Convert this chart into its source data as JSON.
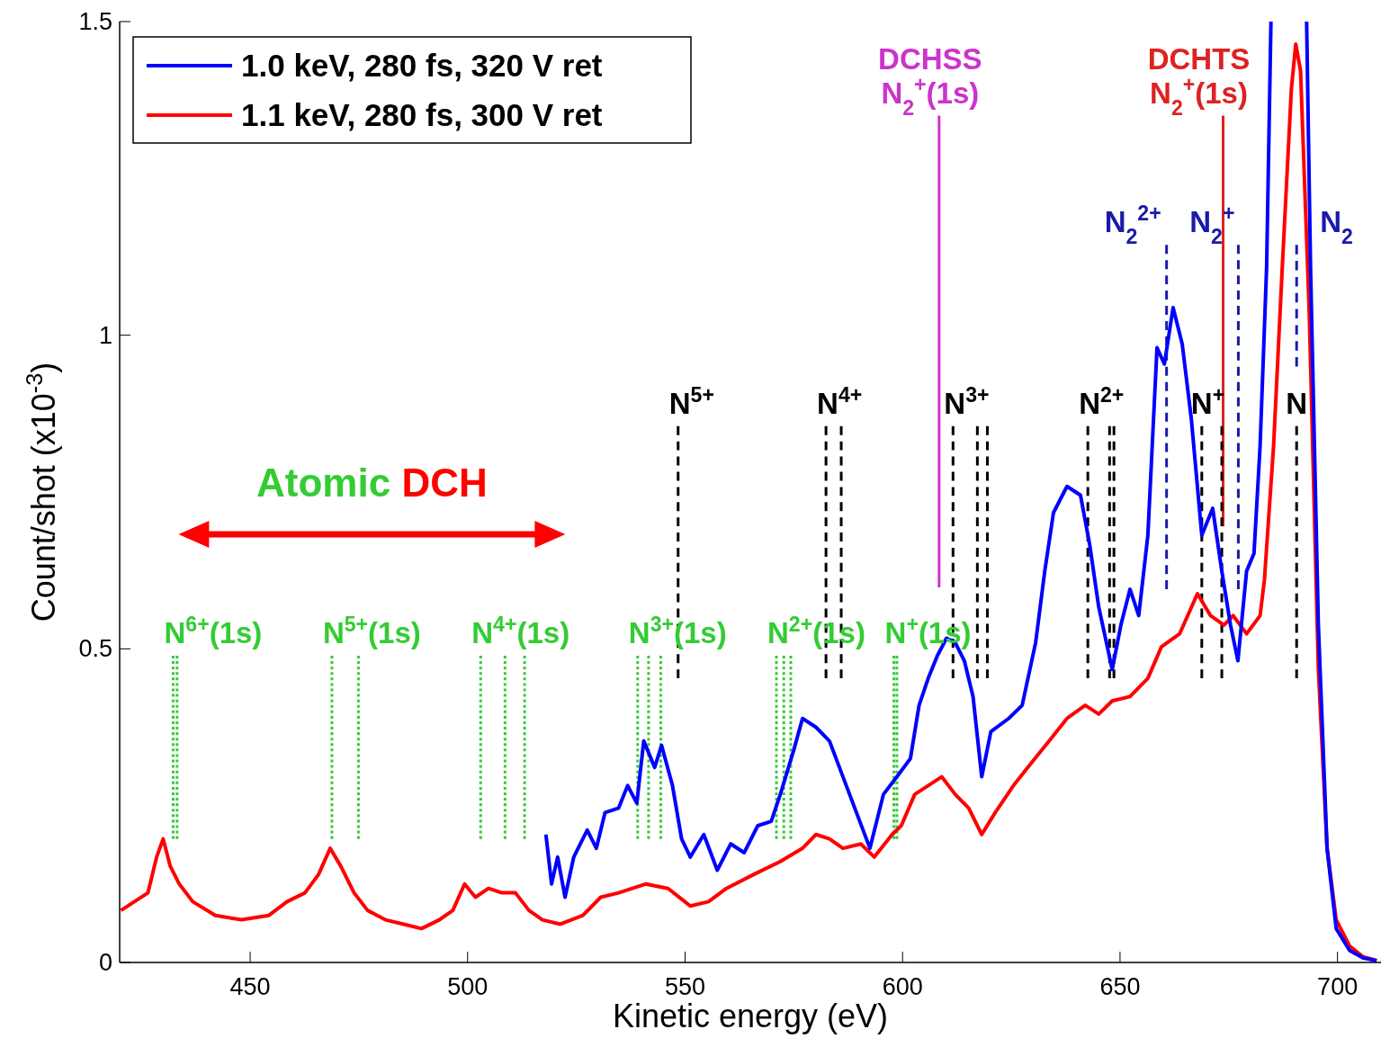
{
  "chart_data": {
    "type": "line",
    "xlabel": "Kinetic energy (eV)",
    "ylabel": "Count/shot (x10$^{-3}$)",
    "xlim": [
      420,
      710
    ],
    "ylim": [
      0,
      1.5
    ],
    "xticks": [
      450,
      500,
      550,
      600,
      650,
      700
    ],
    "yticks": [
      0,
      {
        "value": 0.5,
        "label": "0.5"
      },
      1,
      1.5
    ],
    "grid": false,
    "legend": "top left",
    "annotations": [
      "Atomic DCH"
    ],
    "series": [
      {
        "name": "1.0 keV, 280 fs, 320 V ret",
        "color": "#0000ff",
        "x": [
          518,
          519.3,
          520.7,
          522.4,
          524.4,
          527.5,
          529.6,
          531.6,
          534.7,
          536.8,
          538.9,
          540.5,
          543,
          544.6,
          547.1,
          549.2,
          551.2,
          554.3,
          557.4,
          560.5,
          563.6,
          566.7,
          569.8,
          571.9,
          575,
          577,
          580.1,
          583.2,
          586.3,
          589.4,
          592.5,
          595.6,
          598.7,
          601.8,
          603.8,
          605.9,
          608,
          610.1,
          612.1,
          614.2,
          616.2,
          618.2,
          620.3,
          624.4,
          627.5,
          630.6,
          632.7,
          634.7,
          637.8,
          640.9,
          643,
          645.1,
          648.2,
          650.2,
          652.3,
          654.3,
          656.4,
          658.5,
          660.2,
          662.2,
          664.3,
          666.4,
          668.8,
          671.3,
          673.4,
          675.4,
          677.1,
          679.1,
          680.8,
          682.2,
          683.7,
          684.7,
          688.8,
          692.9,
          693.8,
          695.6,
          697.6,
          699.7,
          702.8,
          705.9,
          709
        ],
        "values": [
          0.204,
          0.125,
          0.168,
          0.104,
          0.168,
          0.211,
          0.182,
          0.239,
          0.246,
          0.282,
          0.254,
          0.353,
          0.311,
          0.346,
          0.282,
          0.197,
          0.168,
          0.204,
          0.147,
          0.189,
          0.175,
          0.218,
          0.225,
          0.268,
          0.339,
          0.389,
          0.375,
          0.353,
          0.296,
          0.239,
          0.182,
          0.268,
          0.296,
          0.325,
          0.41,
          0.453,
          0.489,
          0.517,
          0.51,
          0.481,
          0.424,
          0.296,
          0.368,
          0.389,
          0.41,
          0.51,
          0.624,
          0.717,
          0.759,
          0.745,
          0.667,
          0.567,
          0.467,
          0.538,
          0.595,
          0.553,
          0.681,
          0.98,
          0.954,
          1.044,
          0.986,
          0.866,
          0.681,
          0.724,
          0.624,
          0.538,
          0.481,
          0.624,
          0.652,
          0.823,
          1.108,
          1.5,
          null,
          1.5,
          1.108,
          0.538,
          0.182,
          0.054,
          0.019,
          0.007,
          0.003
        ]
      },
      {
        "name": "1.1 keV, 280 fs, 300 V ret",
        "color": "#ff0000",
        "x": [
          420.3,
          423.4,
          426.5,
          428.5,
          430,
          431.6,
          433.7,
          436.8,
          442,
          448,
          454.3,
          458.5,
          462.6,
          465.7,
          468.4,
          470.8,
          473.9,
          477,
          481.1,
          485.3,
          489.4,
          493.5,
          496.6,
          499.3,
          501.8,
          504.8,
          507.9,
          511,
          514.1,
          517.2,
          521.3,
          526.5,
          530.6,
          534.7,
          540.9,
          546.1,
          551.2,
          555.4,
          559.5,
          565.7,
          571.9,
          577,
          580.1,
          583.2,
          586.3,
          590.4,
          593.5,
          597.6,
          599.7,
          602.8,
          605.9,
          609,
          612.1,
          615.2,
          618.2,
          621.3,
          625.5,
          629.6,
          633.7,
          637.8,
          642,
          645.1,
          648.2,
          652.3,
          656.4,
          659.5,
          663.7,
          667.8,
          670.8,
          673.9,
          676,
          679.1,
          682.2,
          683.2,
          685.3,
          687.3,
          689.4,
          690.4,
          691.5,
          693.5,
          695.6,
          697.6,
          699.7,
          702.8,
          705.9,
          709
        ],
        "values": [
          0.083,
          0.097,
          0.111,
          0.168,
          0.197,
          0.154,
          0.125,
          0.097,
          0.075,
          0.068,
          0.075,
          0.097,
          0.111,
          0.14,
          0.182,
          0.154,
          0.111,
          0.083,
          0.068,
          0.061,
          0.054,
          0.068,
          0.083,
          0.125,
          0.104,
          0.118,
          0.111,
          0.111,
          0.083,
          0.068,
          0.061,
          0.075,
          0.104,
          0.111,
          0.125,
          0.118,
          0.09,
          0.097,
          0.118,
          0.14,
          0.161,
          0.182,
          0.204,
          0.197,
          0.182,
          0.189,
          0.168,
          0.204,
          0.218,
          0.268,
          0.282,
          0.296,
          0.268,
          0.246,
          0.204,
          0.239,
          0.282,
          0.318,
          0.353,
          0.389,
          0.41,
          0.396,
          0.417,
          0.424,
          0.453,
          0.503,
          0.524,
          0.588,
          0.553,
          0.538,
          0.553,
          0.524,
          0.553,
          0.61,
          0.823,
          1.108,
          1.393,
          1.464,
          1.422,
          1.037,
          0.467,
          0.182,
          0.068,
          0.026,
          0.009,
          0.003
        ]
      },
      {
        "name": "N$^{6+}$(1s)",
        "color": "#33cc33",
        "line_style": "dotted",
        "x": [
          432.3,
          432.3
        ],
        "values": [
          0.489,
          0.197
        ]
      },
      {
        "color": "#33cc33",
        "line_style": "dotted",
        "x": [
          433.2,
          433.2
        ],
        "values": [
          0.489,
          0.197
        ]
      },
      {
        "name": "N$^{5+}$(1s)",
        "color": "#33cc33",
        "line_style": "dotted",
        "x": [
          468.8,
          468.8
        ],
        "values": [
          0.489,
          0.197
        ]
      },
      {
        "color": "#33cc33",
        "line_style": "dotted",
        "x": [
          474.9,
          474.9
        ],
        "values": [
          0.489,
          0.197
        ]
      },
      {
        "name": "N$^{4+}$(1s)",
        "color": "#33cc33",
        "line_style": "dotted",
        "x": [
          503,
          503
        ],
        "values": [
          0.489,
          0.197
        ]
      },
      {
        "color": "#33cc33",
        "line_style": "dotted",
        "x": [
          508.6,
          508.6
        ],
        "values": [
          0.489,
          0.197
        ]
      },
      {
        "color": "#33cc33",
        "line_style": "dotted",
        "x": [
          513.1,
          513.1
        ],
        "values": [
          0.489,
          0.197
        ]
      },
      {
        "name": "N$^{3+}$(1s)",
        "color": "#33cc33",
        "line_style": "dotted",
        "x": [
          539.1,
          539.1
        ],
        "values": [
          0.489,
          0.197
        ]
      },
      {
        "color": "#33cc33",
        "line_style": "dotted",
        "x": [
          541.6,
          541.6
        ],
        "values": [
          0.489,
          0.197
        ]
      },
      {
        "color": "#33cc33",
        "line_style": "dotted",
        "x": [
          544.4,
          544.4
        ],
        "values": [
          0.489,
          0.197
        ]
      },
      {
        "name": "N$^{2+}$(1s)",
        "color": "#33cc33",
        "line_style": "dotted",
        "x": [
          571,
          571
        ],
        "values": [
          0.489,
          0.197
        ]
      },
      {
        "color": "#33cc33",
        "line_style": "dotted",
        "x": [
          572.7,
          572.7
        ],
        "values": [
          0.489,
          0.197
        ]
      },
      {
        "color": "#33cc33",
        "line_style": "dotted",
        "x": [
          574.3,
          574.3
        ],
        "values": [
          0.489,
          0.197
        ]
      },
      {
        "name": "N$^{+}$(1s)",
        "color": "#33cc33",
        "line_style": "dotted",
        "x": [
          598,
          598
        ],
        "values": [
          0.489,
          0.197
        ]
      },
      {
        "color": "#33cc33",
        "line_style": "dotted",
        "x": [
          598.7,
          598.7
        ],
        "values": [
          0.489,
          0.197
        ]
      },
      {
        "name": "N$^{5+}$",
        "color": "#000000",
        "line_style": "dashed",
        "x": [
          548.4,
          548.4
        ],
        "values": [
          0.855,
          0.453
        ]
      },
      {
        "name": "N$^{4+}$",
        "color": "#000000",
        "line_style": "dashed",
        "x": [
          582.4,
          582.4
        ],
        "values": [
          0.855,
          0.453
        ]
      },
      {
        "color": "#000000",
        "line_style": "dashed",
        "x": [
          585.9,
          585.9
        ],
        "values": [
          0.855,
          0.453
        ]
      },
      {
        "name": "N$^{3+}$",
        "color": "#000000",
        "line_style": "dashed",
        "x": [
          611.6,
          611.6
        ],
        "values": [
          0.855,
          0.453
        ]
      },
      {
        "color": "#000000",
        "line_style": "dashed",
        "x": [
          617.2,
          617.2
        ],
        "values": [
          0.855,
          0.453
        ]
      },
      {
        "color": "#000000",
        "line_style": "dashed",
        "x": [
          619.5,
          619.5
        ],
        "values": [
          0.855,
          0.453
        ]
      },
      {
        "name": "N$^{2+}$",
        "color": "#000000",
        "line_style": "dashed",
        "x": [
          642.6,
          642.6
        ],
        "values": [
          0.855,
          0.453
        ]
      },
      {
        "color": "#000000",
        "line_style": "dashed",
        "x": [
          647.6,
          647.6
        ],
        "values": [
          0.855,
          0.453
        ]
      },
      {
        "color": "#000000",
        "line_style": "dashed",
        "x": [
          648.6,
          648.6
        ],
        "values": [
          0.855,
          0.453
        ]
      },
      {
        "name": "N$^{+}$",
        "color": "#000000",
        "line_style": "dashed",
        "x": [
          668.8,
          668.8
        ],
        "values": [
          0.855,
          0.453
        ]
      },
      {
        "color": "#000000",
        "line_style": "dashed",
        "x": [
          673.4,
          673.4
        ],
        "values": [
          0.855,
          0.453
        ]
      },
      {
        "name": "N",
        "color": "#000000",
        "line_style": "dashed",
        "x": [
          690.6,
          690.6
        ],
        "values": [
          0.855,
          0.453
        ]
      },
      {
        "name": "DCHSS\nN$_{2}$$^{+}$(1s)",
        "color": "#cc33cc",
        "line_style": "solid",
        "x": [
          608.4,
          608.4
        ],
        "values": [
          1.35,
          0.598
        ]
      },
      {
        "name": "DCHTS\nN$_{2}$$^{+}$(1s)",
        "color": "#dd2222",
        "line_style": "solid",
        "x": [
          673.7,
          673.7
        ],
        "values": [
          1.35,
          0.695
        ]
      },
      {
        "name": "N$_{2}$$^{2+}$",
        "color": "#1a1aaa",
        "line_style": "dashed",
        "x": [
          660.7,
          660.7
        ],
        "values": [
          1.144,
          0.595
        ]
      },
      {
        "name": "N$_{2}$$^{+}$",
        "color": "#1a1aaa",
        "line_style": "dashed",
        "x": [
          677.2,
          677.2
        ],
        "values": [
          1.144,
          0.595
        ]
      },
      {
        "name": "N$_{2}$",
        "color": "#1a1aaa",
        "line_style": "dashed",
        "x": [
          690.6,
          690.6
        ],
        "values": [
          1.144,
          0.95
        ]
      }
    ]
  }
}
